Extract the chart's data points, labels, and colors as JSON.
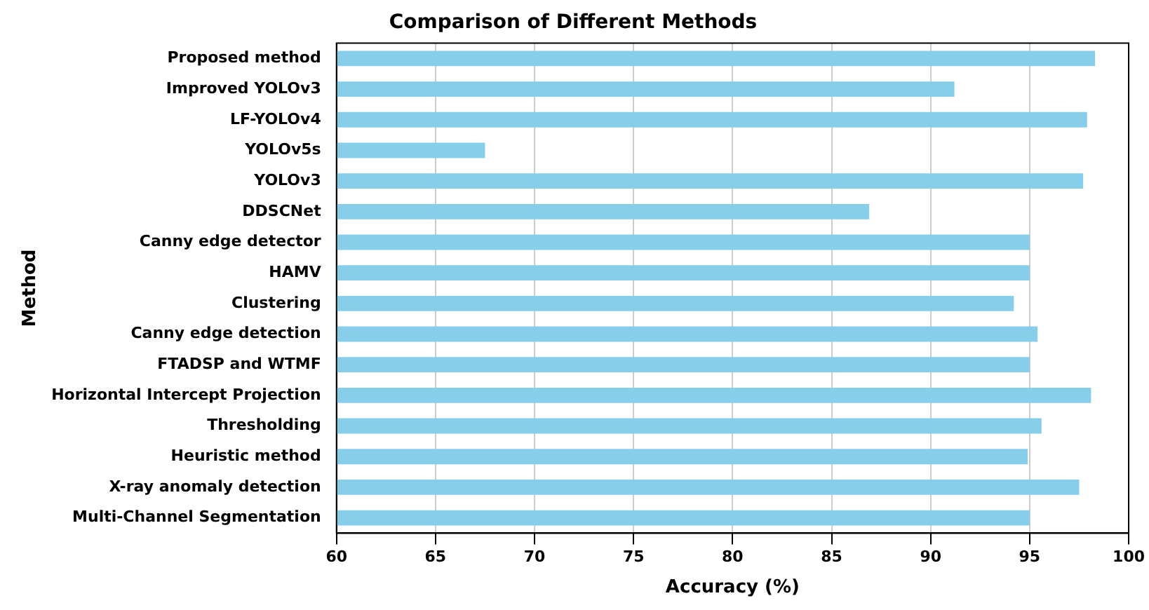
{
  "chart_data": {
    "type": "bar",
    "orientation": "horizontal",
    "title": "Comparison of Different Methods",
    "xlabel": "Accuracy (%)",
    "ylabel": "Method",
    "categories": [
      "Proposed method",
      "Improved YOLOv3",
      "LF-YOLOv4",
      "YOLOv5s",
      "YOLOv3",
      "DDSCNet",
      "Canny edge detector",
      "HAMV",
      "Clustering",
      "Canny edge detection",
      "FTADSP and WTMF",
      "Horizontal Intercept Projection",
      "Thresholding",
      "Heuristic method",
      "X-ray anomaly detection",
      "Multi-Channel Segmentation"
    ],
    "values": [
      98.3,
      91.2,
      97.9,
      67.5,
      97.7,
      86.9,
      95,
      95,
      94.2,
      95.4,
      95,
      98.1,
      95.6,
      94.9,
      97.5,
      95
    ],
    "color": "#87ceeb",
    "xlim": [
      60,
      100
    ],
    "xticks": [
      60,
      65,
      70,
      75,
      80,
      85,
      90,
      95,
      100
    ],
    "grid": "x",
    "legend": false
  }
}
